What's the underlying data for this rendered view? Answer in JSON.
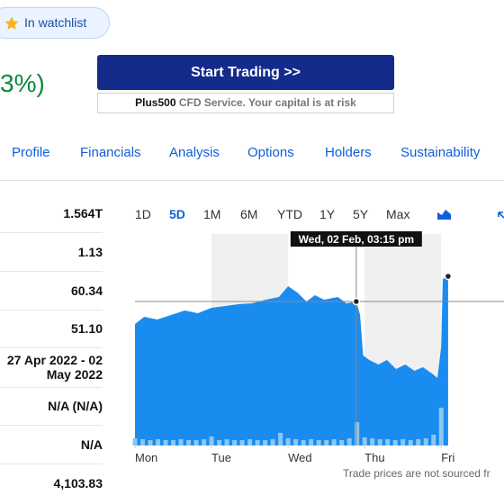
{
  "watchlist_button": "In watchlist",
  "price_change_fragment": "3%)",
  "ad": {
    "button": "Start Trading >>",
    "brand": "Plus500",
    "disclaimer": "CFD Service. Your capital is at risk"
  },
  "tabs": [
    "Profile",
    "Financials",
    "Analysis",
    "Options",
    "Holders",
    "Sustainability"
  ],
  "stats": [
    "1.564T",
    "1.13",
    "60.34",
    "51.10",
    "27 Apr 2022 - 02 May 2022",
    "N/A (N/A)",
    "N/A",
    "4,103.83"
  ],
  "chart": {
    "type": "area",
    "ranges": [
      "1D",
      "5D",
      "1M",
      "6M",
      "YTD",
      "1Y",
      "5Y",
      "Max"
    ],
    "tooltip": "Wed, 02 Feb, 03:15 pm",
    "xlim": [
      0,
      4.82
    ],
    "ylim": [
      0,
      235
    ],
    "xticks": [
      {
        "value": 0,
        "label": "Mon"
      },
      {
        "value": 1,
        "label": "Tue"
      },
      {
        "value": 2,
        "label": "Wed"
      },
      {
        "value": 3,
        "label": "Thu"
      },
      {
        "value": 4,
        "label": "Fri"
      }
    ],
    "series": [
      {
        "color": "#1a8cf0",
        "x": [
          0,
          0.12,
          0.29,
          0.47,
          0.65,
          0.82,
          1,
          1.18,
          1.35,
          1.53,
          1.71,
          1.88,
          2,
          2.12,
          2.24,
          2.35,
          2.47,
          2.65,
          2.76,
          2.89,
          2.94,
          2.98,
          3.06,
          3.18,
          3.29,
          3.41,
          3.53,
          3.65,
          3.76,
          3.88,
          3.95,
          4,
          4.02,
          4.09
        ],
        "values": [
          135,
          143,
          140,
          145,
          150,
          147,
          153,
          155,
          157,
          158,
          162,
          165,
          177,
          170,
          160,
          167,
          162,
          165,
          158,
          160,
          145,
          100,
          95,
          90,
          95,
          85,
          90,
          83,
          87,
          80,
          75,
          110,
          185,
          188
        ]
      }
    ],
    "volume": {
      "color": "#8cc6f2",
      "x": [
        0,
        0.1,
        0.2,
        0.3,
        0.4,
        0.5,
        0.6,
        0.7,
        0.8,
        0.9,
        1,
        1.1,
        1.2,
        1.3,
        1.4,
        1.5,
        1.6,
        1.7,
        1.8,
        1.9,
        2,
        2.1,
        2.2,
        2.3,
        2.4,
        2.5,
        2.6,
        2.7,
        2.8,
        2.9,
        3,
        3.1,
        3.2,
        3.3,
        3.4,
        3.5,
        3.6,
        3.7,
        3.8,
        3.9,
        4
      ],
      "values": [
        8,
        7,
        6,
        7,
        6,
        6,
        7,
        6,
        6,
        7,
        10,
        6,
        7,
        6,
        6,
        7,
        6,
        6,
        7,
        14,
        8,
        7,
        6,
        7,
        6,
        6,
        7,
        6,
        8,
        26,
        9,
        8,
        7,
        7,
        6,
        7,
        6,
        7,
        8,
        12,
        42
      ]
    },
    "footnote": "Trade prices are not sourced fr"
  }
}
